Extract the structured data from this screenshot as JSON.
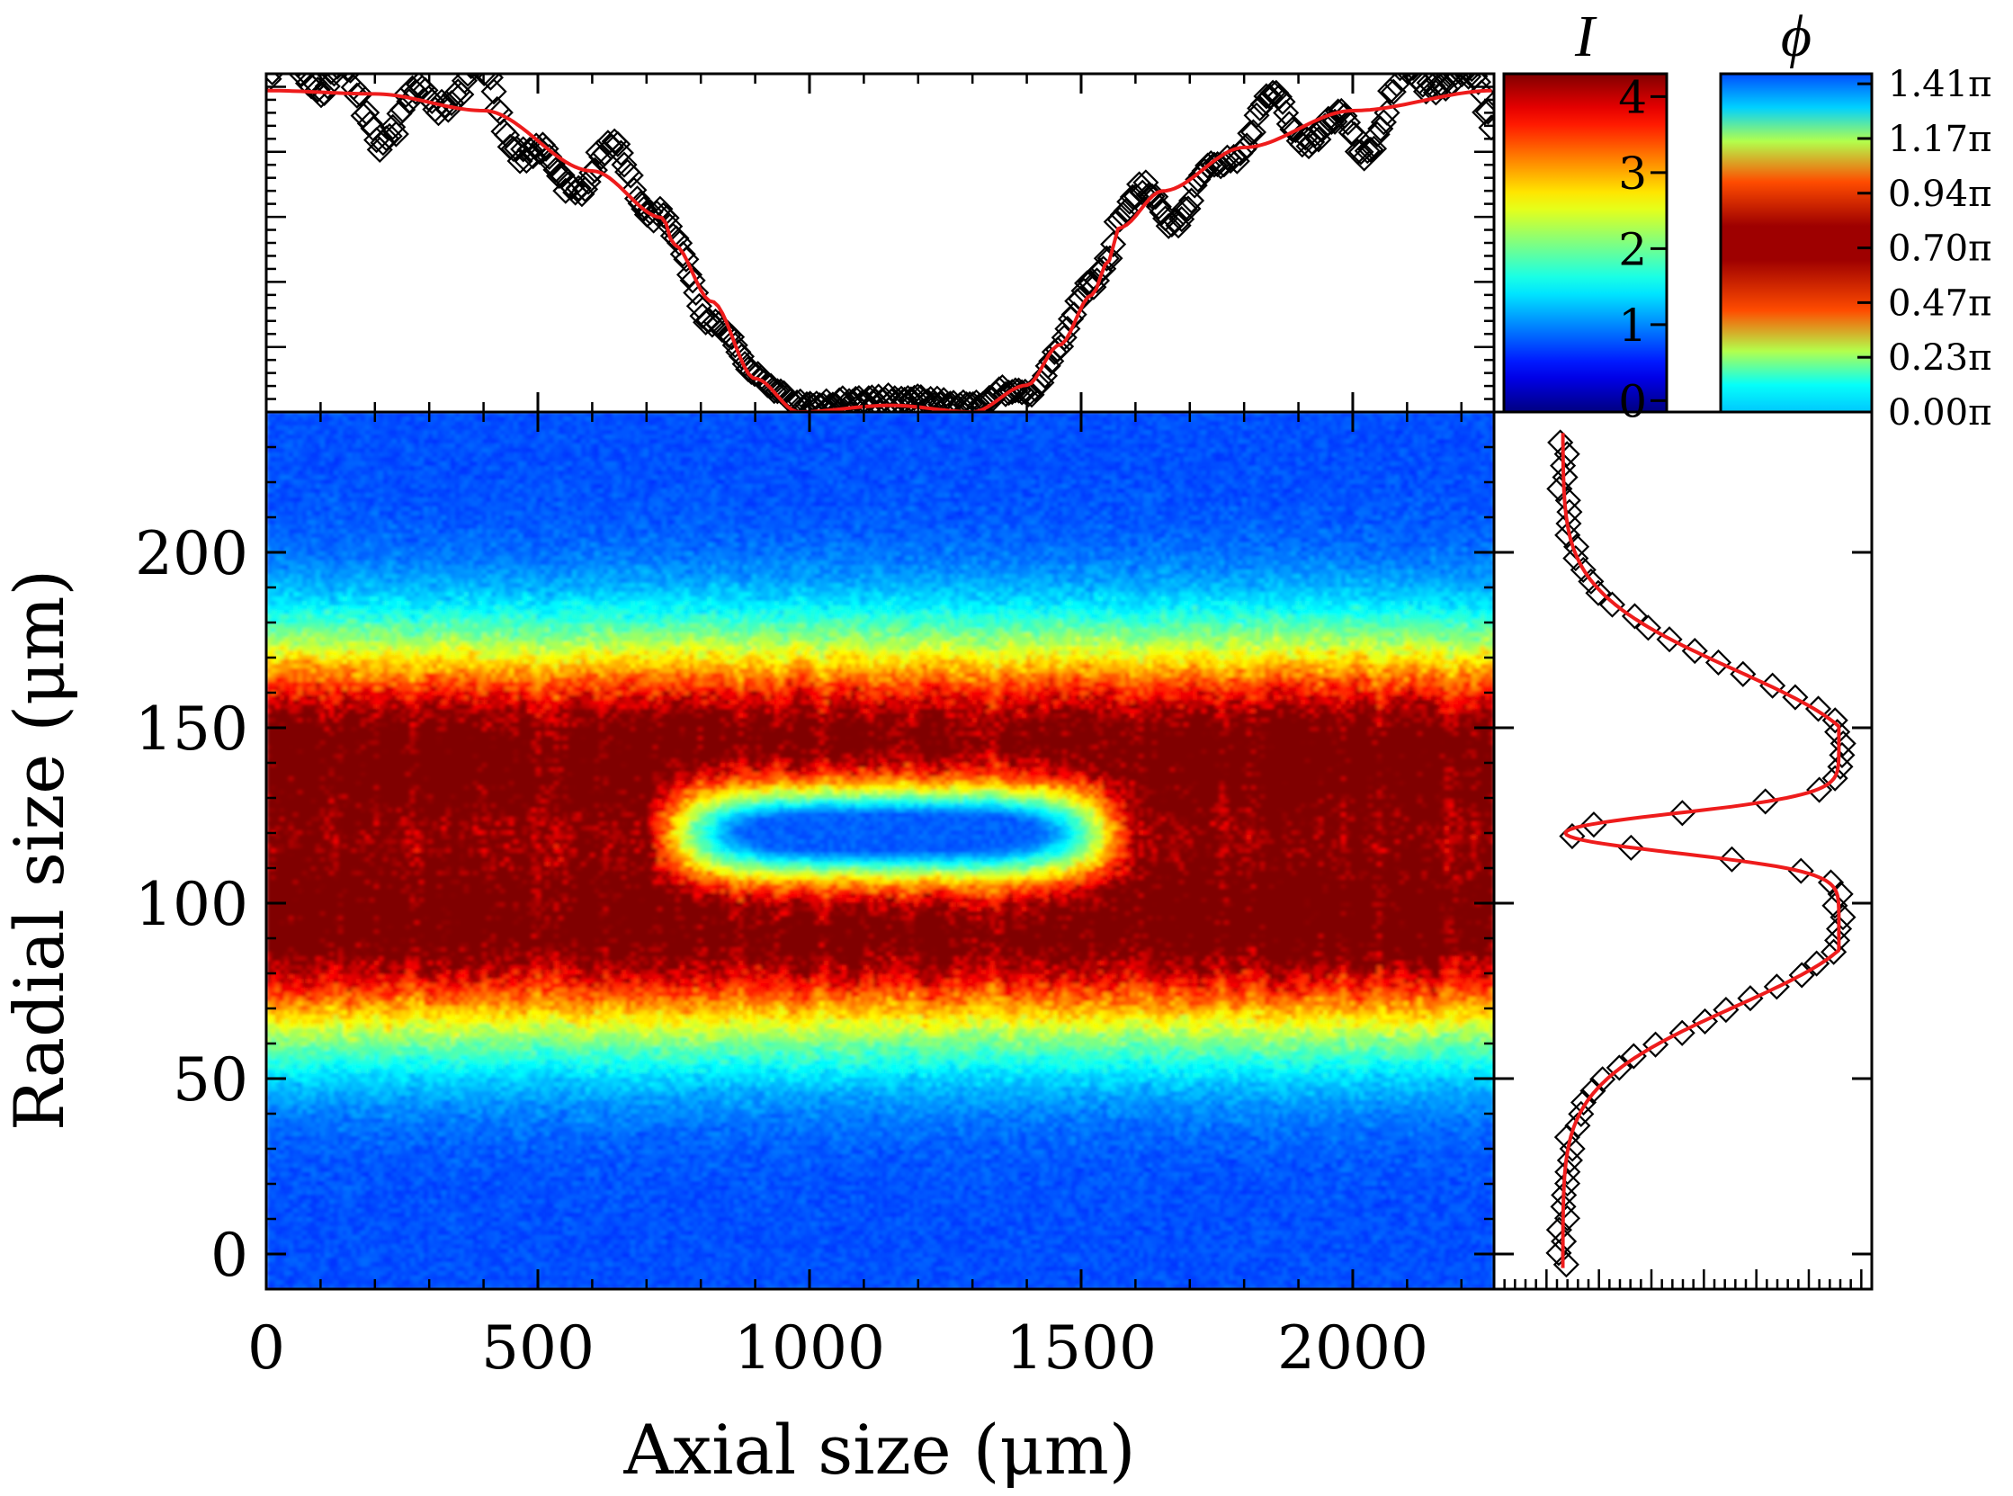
{
  "chart_data": [
    {
      "type": "heatmap",
      "name": "Main density map",
      "xlabel": "Axial size (μm)",
      "ylabel": "Radial size (μm)",
      "xlim": [
        0,
        2260
      ],
      "ylim": [
        -10,
        240
      ],
      "xticks": [
        0,
        500,
        1000,
        1500,
        2000
      ],
      "xtick_labels": [
        "0",
        "500",
        "1000",
        "1500",
        "2000"
      ],
      "yticks": [
        0,
        50,
        100,
        150,
        200
      ],
      "ytick_labels": [
        "0",
        "50",
        "100",
        "150",
        "200"
      ],
      "ring_center_um": 120,
      "ring_peaks_um": [
        92,
        145
      ],
      "ring_width_sigma_um": 22,
      "soliton": {
        "x_range_um": [
          700,
          1600
        ],
        "y_center_um": 120,
        "half_height_um": 10
      },
      "intensity_range": [
        0,
        4.3
      ]
    },
    {
      "type": "scatter",
      "name": "Axial intensity profile (top panel)",
      "x_range_um": [
        0,
        2260
      ],
      "fit_points": [
        [
          0,
          0.96
        ],
        [
          200,
          0.95
        ],
        [
          400,
          0.9
        ],
        [
          600,
          0.72
        ],
        [
          730,
          0.58
        ],
        [
          750,
          0.5
        ],
        [
          820,
          0.33
        ],
        [
          900,
          0.1
        ],
        [
          980,
          0.0
        ],
        [
          1150,
          0.02
        ],
        [
          1300,
          0.0
        ],
        [
          1400,
          0.08
        ],
        [
          1460,
          0.2
        ],
        [
          1520,
          0.35
        ],
        [
          1550,
          0.45
        ],
        [
          1570,
          0.55
        ],
        [
          1650,
          0.66
        ],
        [
          1800,
          0.79
        ],
        [
          2000,
          0.9
        ],
        [
          2260,
          0.96
        ]
      ],
      "fit_color": "#ee1c1c",
      "marker": "diamond"
    },
    {
      "type": "scatter",
      "name": "Radial intensity profile (right panel)",
      "y_range_um": [
        -10,
        240
      ],
      "fit_description": "two Gaussian peaks with dip at ring center",
      "peaks_um": [
        92,
        145
      ],
      "dip_um": 120,
      "fit_color": "#ee1c1c",
      "marker": "diamond"
    },
    {
      "type": "colorbar",
      "name": "I",
      "title": "I",
      "range": [
        -0.15,
        4.3
      ],
      "tick_labels": [
        "0",
        "1",
        "2",
        "3",
        "4"
      ],
      "tick_values": [
        0,
        1,
        2,
        3,
        4
      ],
      "colormap": "jet"
    },
    {
      "type": "colorbar",
      "name": "phi",
      "title": "ϕ",
      "range_pi": [
        0,
        1.45
      ],
      "tick_labels": [
        "0.00π",
        "0.23π",
        "0.47π",
        "0.70π",
        "0.94π",
        "1.17π",
        "1.41π"
      ],
      "tick_values_pi": [
        0.0,
        0.2345,
        0.469,
        0.7035,
        0.938,
        1.1725,
        1.407
      ],
      "colormap": "jet (peak at middle, symmetric)"
    }
  ],
  "labels": {
    "x_axis_title": "Axial size (μm)",
    "y_axis_title": "Radial size (μm)",
    "cbar_I_title": "I",
    "cbar_phi_title": "ϕ"
  }
}
